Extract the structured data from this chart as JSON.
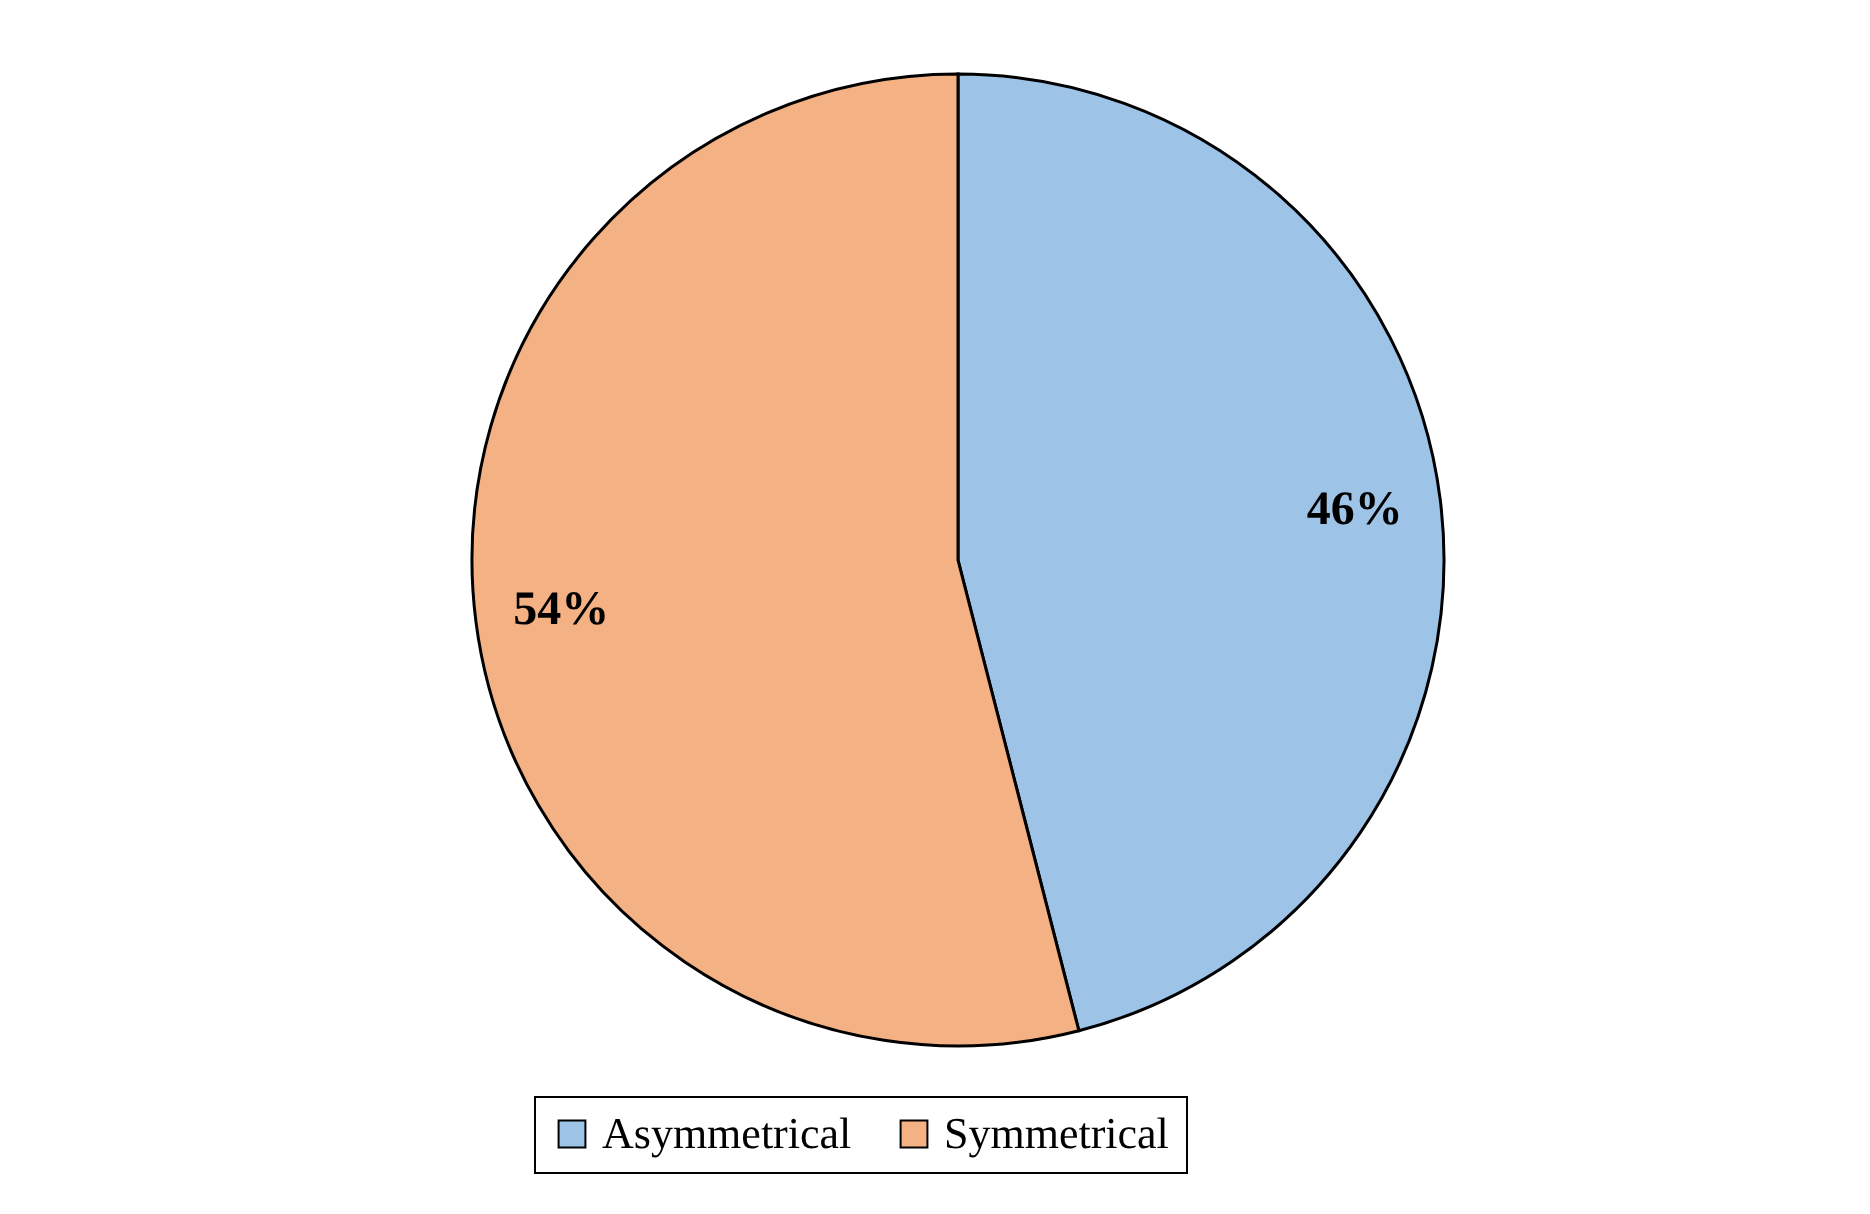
{
  "chart_data": {
    "type": "pie",
    "categories": [
      "Asymmetrical",
      "Symmetrical"
    ],
    "values": [
      46,
      54
    ],
    "colors": [
      "#9dc3e6",
      "#f4b183"
    ],
    "value_labels": [
      "46%",
      "54%"
    ],
    "legend": "bottom"
  }
}
